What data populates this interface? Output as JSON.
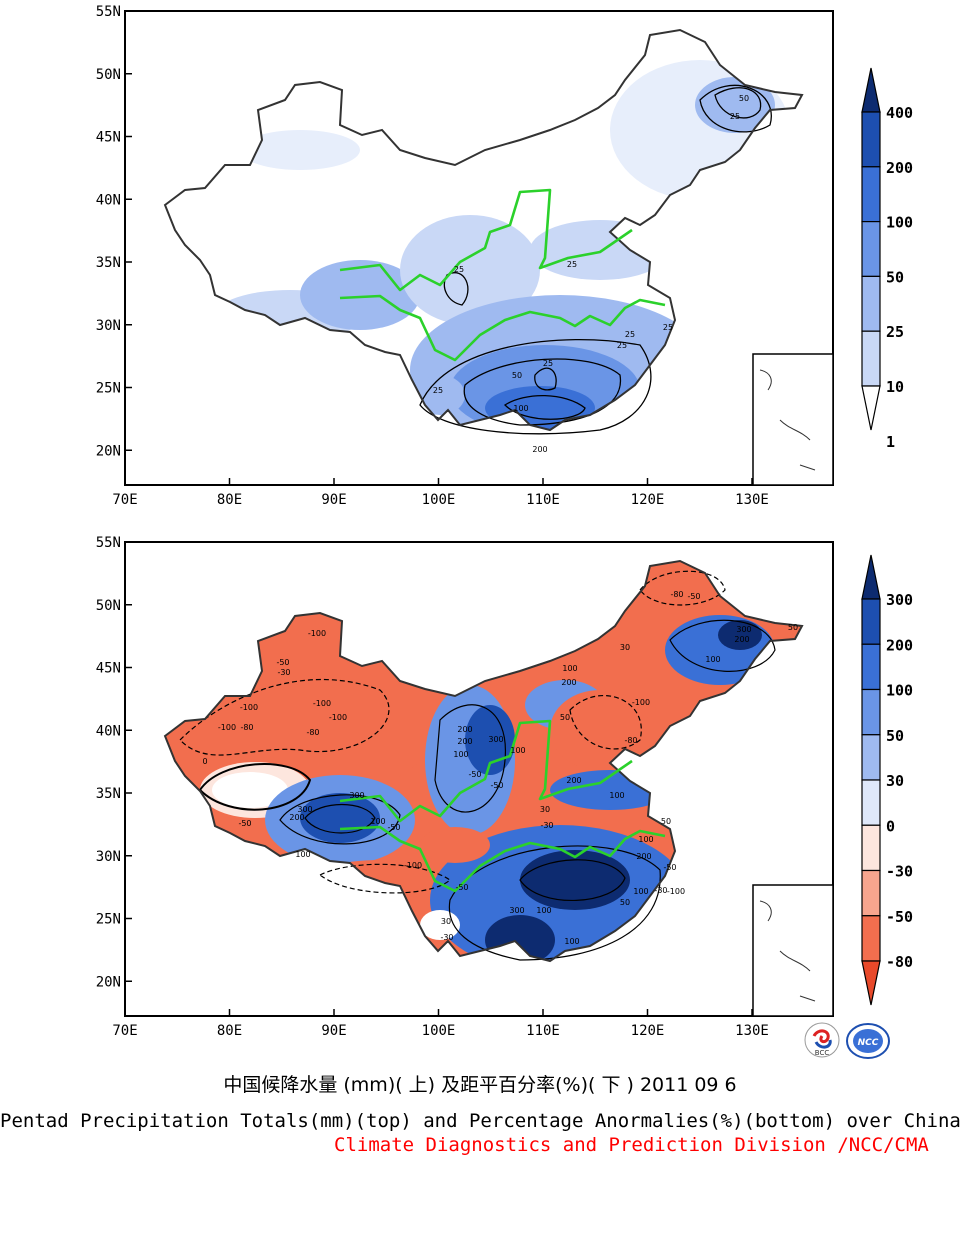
{
  "top_map": {
    "lat_labels": [
      "55N",
      "50N",
      "45N",
      "40N",
      "35N",
      "30N",
      "25N",
      "20N"
    ],
    "lon_labels": [
      "70E",
      "80E",
      "90E",
      "100E",
      "110E",
      "120E",
      "130E"
    ],
    "colorbar": {
      "labels": [
        "400",
        "200",
        "100",
        "50",
        "25",
        "10",
        "1"
      ],
      "colors": [
        "#0d2b70",
        "#1d4fb0",
        "#3a70d6",
        "#6a95e6",
        "#9fbaf0",
        "#c9d8f6",
        "#ffffff"
      ]
    },
    "contour_labels": [
      "50",
      "25",
      "25",
      "25",
      "25",
      "25",
      "25",
      "50",
      "100",
      "200",
      "25",
      "25"
    ]
  },
  "bottom_map": {
    "lat_labels": [
      "55N",
      "50N",
      "45N",
      "40N",
      "35N",
      "30N",
      "25N",
      "20N"
    ],
    "lon_labels": [
      "70E",
      "80E",
      "90E",
      "100E",
      "110E",
      "120E",
      "130E"
    ],
    "colorbar": {
      "labels": [
        "300",
        "200",
        "100",
        "50",
        "30",
        "0",
        "-30",
        "-50",
        "-80"
      ],
      "colors": [
        "#0d2b70",
        "#1d4fb0",
        "#3a70d6",
        "#6a95e6",
        "#9fbaf0",
        "#dfe8fa",
        "#fde6de",
        "#f7a58e",
        "#f26e4e",
        "#e8492a"
      ]
    },
    "contour_labels": [
      "-80",
      "-50",
      "300",
      "200",
      "100",
      "50",
      "-100",
      "-50",
      "-30",
      "-100",
      "-100",
      "-80",
      "-100",
      "-100",
      "-80",
      "100",
      "200",
      "200",
      "200",
      "100",
      "-50",
      "-50",
      "300",
      "100",
      "-100",
      "-50",
      "50",
      "30",
      "-80",
      "200",
      "100",
      "-100",
      "200",
      "300",
      "100",
      "-50",
      "100",
      "200",
      "300",
      "100",
      "-30",
      "30",
      "50",
      "100",
      "50",
      "-30",
      "-50",
      "-100",
      "300",
      "100",
      "100",
      "30",
      "-30",
      "0",
      "-50"
    ]
  },
  "logos": {
    "left": "BCC",
    "right": "NCC"
  },
  "captions": {
    "chinese": "中国候降水量 (mm)( 上) 及距平百分率(%)( 下 ) 2011 09 6",
    "english": "Pentad Precipitation Totals(mm)(top) and Percentage Anormalies(%)(bottom) over China",
    "credit": "Climate Diagnostics and Prediction Division /NCC/CMA"
  }
}
